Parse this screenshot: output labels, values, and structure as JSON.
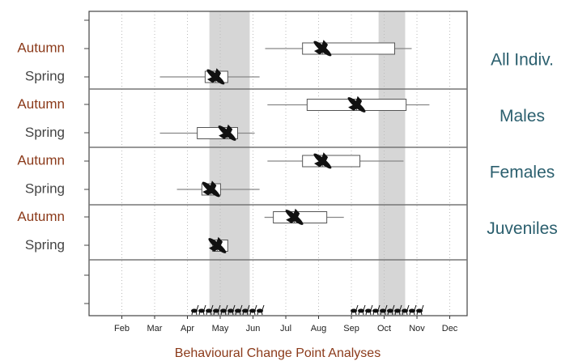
{
  "chart_data": {
    "type": "boxplot",
    "xlabel": "Behavioural Change Point Analyses",
    "xlim": [
      1,
      12.53
    ],
    "xticks": [
      {
        "value": 2,
        "label": "Feb"
      },
      {
        "value": 3,
        "label": "Mar"
      },
      {
        "value": 4,
        "label": "Apr"
      },
      {
        "value": 5,
        "label": "May"
      },
      {
        "value": 6,
        "label": "Jun"
      },
      {
        "value": 7,
        "label": "Jul"
      },
      {
        "value": 8,
        "label": "Aug"
      },
      {
        "value": 9,
        "label": "Sep"
      },
      {
        "value": 10,
        "label": "Oct"
      },
      {
        "value": 11,
        "label": "Nov"
      },
      {
        "value": 12,
        "label": "Dec"
      }
    ],
    "grid": true,
    "shaded_ranges": [
      [
        4.67,
        5.9
      ],
      [
        9.83,
        10.64
      ]
    ],
    "groups": [
      {
        "name": "All Indiv.",
        "rows": [
          {
            "label": "Autumn",
            "label_color": "#8b3a1a",
            "min": 6.37,
            "q1": 7.51,
            "median": 8.12,
            "q3": 10.32,
            "max": 10.84
          },
          {
            "label": "Spring",
            "label_color": "#444444",
            "min": 3.16,
            "q1": 4.54,
            "median": 4.86,
            "q3": 5.23,
            "max": 6.2
          }
        ]
      },
      {
        "name": "Males",
        "rows": [
          {
            "label": "Autumn",
            "label_color": "#8b3a1a",
            "min": 6.44,
            "q1": 7.65,
            "median": 9.16,
            "q3": 10.67,
            "max": 11.38
          },
          {
            "label": "Spring",
            "label_color": "#444444",
            "min": 3.16,
            "q1": 4.3,
            "median": 5.21,
            "q3": 5.53,
            "max": 6.05
          }
        ]
      },
      {
        "name": "Females",
        "rows": [
          {
            "label": "Autumn",
            "label_color": "#8b3a1a",
            "min": 6.44,
            "q1": 7.51,
            "median": 8.12,
            "q3": 9.26,
            "max": 10.59
          },
          {
            "label": "Spring",
            "label_color": "#444444",
            "min": 3.68,
            "q1": 4.44,
            "median": 4.72,
            "q3": 5.01,
            "max": 6.2
          }
        ]
      },
      {
        "name": "Juveniles",
        "rows": [
          {
            "label": "Autumn",
            "label_color": "#8b3a1a",
            "min": 6.35,
            "q1": 6.62,
            "median": 7.26,
            "q3": 8.25,
            "max": 8.77
          },
          {
            "label": "Spring",
            "label_color": "#444444",
            "q1": 4.77,
            "median": 4.91,
            "q3": 5.23
          }
        ]
      }
    ]
  }
}
